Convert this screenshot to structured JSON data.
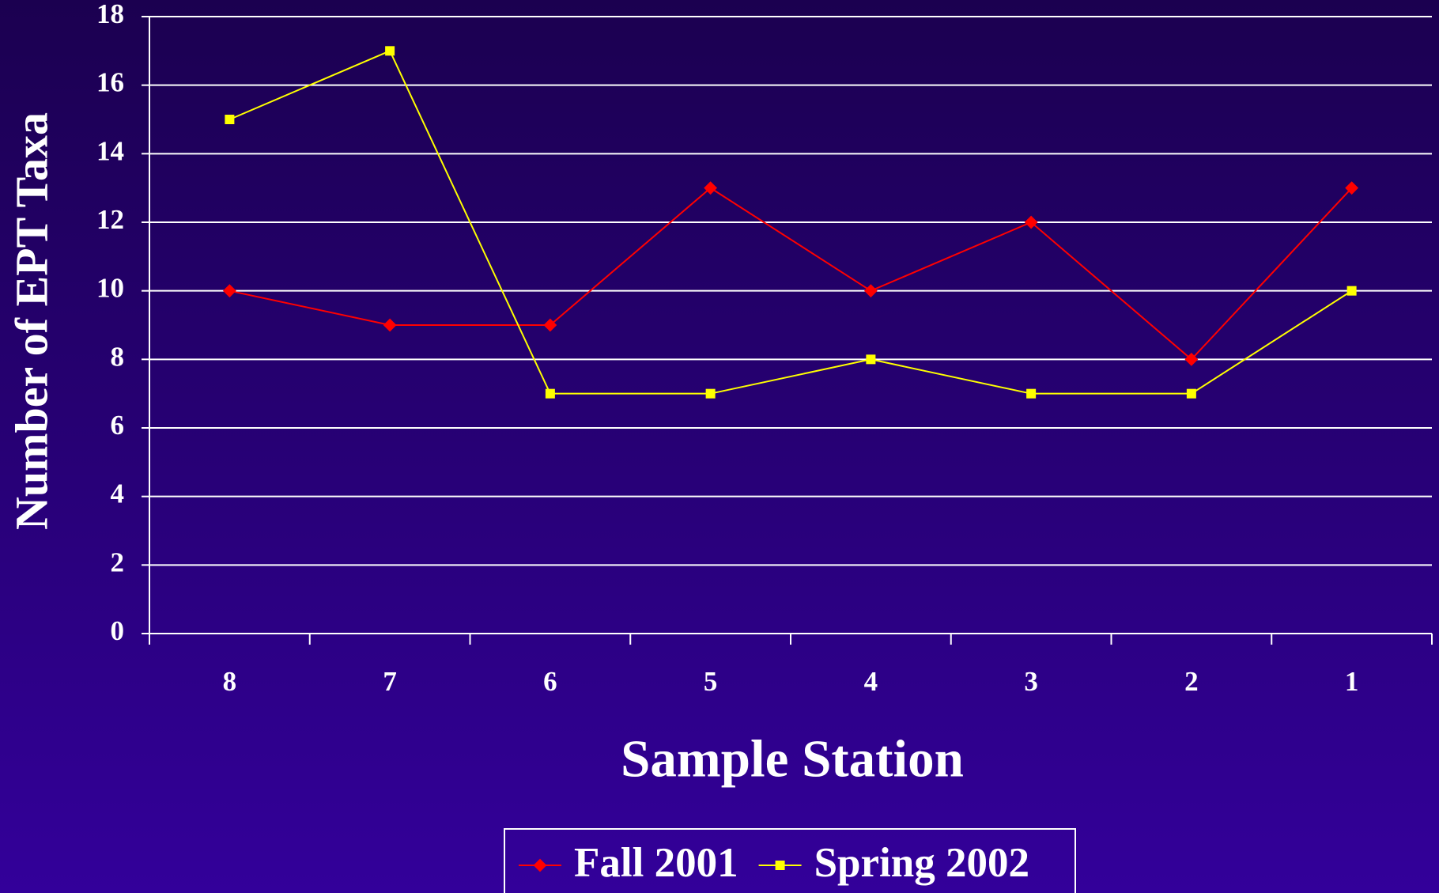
{
  "chart_data": {
    "type": "line",
    "y_label": "Number of EPT Taxa",
    "x_label": "Sample Station",
    "categories": [
      "8",
      "7",
      "6",
      "5",
      "4",
      "3",
      "2",
      "1"
    ],
    "series": [
      {
        "name": "Fall 2001",
        "color": "#ff0000",
        "marker": "diamond",
        "values": [
          10,
          9,
          9,
          13,
          10,
          12,
          8,
          13
        ]
      },
      {
        "name": "Spring 2002",
        "color": "#ffff00",
        "marker": "square",
        "values": [
          15,
          17,
          7,
          7,
          8,
          7,
          7,
          10
        ]
      }
    ],
    "ylim": [
      0,
      18
    ],
    "yticks": [
      0,
      2,
      4,
      6,
      8,
      10,
      12,
      14,
      16,
      18
    ],
    "grid": true,
    "legend": "bottom"
  }
}
